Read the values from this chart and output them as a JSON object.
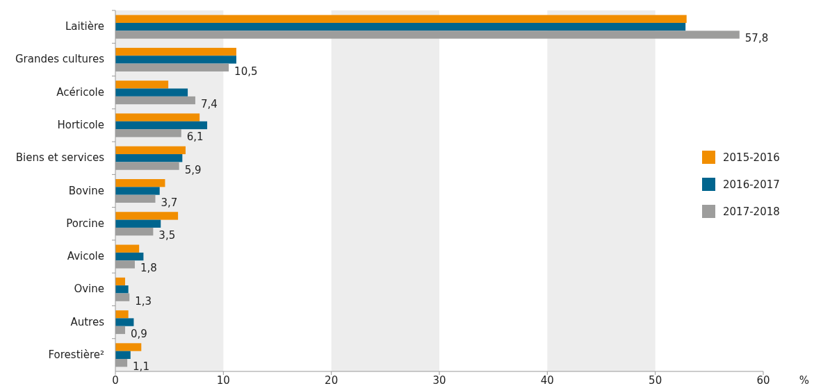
{
  "chart_data": {
    "type": "bar",
    "orientation": "horizontal",
    "categories": [
      "Laitière",
      "Grandes cultures",
      "Acéricole",
      "Horticole",
      "Biens et services",
      "Bovine",
      "Porcine",
      "Avicole",
      "Ovine",
      "Autres",
      "Forestière²"
    ],
    "series": [
      {
        "name": "2015-2016",
        "color": "#f18e00",
        "values": [
          52.9,
          11.2,
          4.9,
          7.8,
          6.5,
          4.6,
          5.8,
          2.2,
          0.9,
          1.2,
          2.4
        ]
      },
      {
        "name": "2016-2017",
        "color": "#00658e",
        "values": [
          52.8,
          11.2,
          6.7,
          8.5,
          6.2,
          4.1,
          4.2,
          2.6,
          1.2,
          1.7,
          1.4
        ]
      },
      {
        "name": "2017-2018",
        "color": "#9d9d9c",
        "values": [
          57.8,
          10.5,
          7.4,
          6.1,
          5.9,
          3.7,
          3.5,
          1.8,
          1.3,
          0.9,
          1.1
        ],
        "value_labels": [
          "57,8",
          "10,5",
          "7,4",
          "6,1",
          "5,9",
          "3,7",
          "3,5",
          "1,8",
          "1,3",
          "0,9",
          "1,1"
        ]
      }
    ],
    "xlim": [
      0,
      60
    ],
    "xticks": [
      0,
      10,
      20,
      30,
      40,
      50,
      60
    ],
    "xlabel": "%",
    "bands": [
      {
        "axis": "x",
        "from": 0,
        "to": 10,
        "color": "#ededed"
      },
      {
        "axis": "x",
        "from": 20,
        "to": 30,
        "color": "#ededed"
      },
      {
        "axis": "x",
        "from": 40,
        "to": 50,
        "color": "#ededed"
      }
    ],
    "legend": "right"
  }
}
